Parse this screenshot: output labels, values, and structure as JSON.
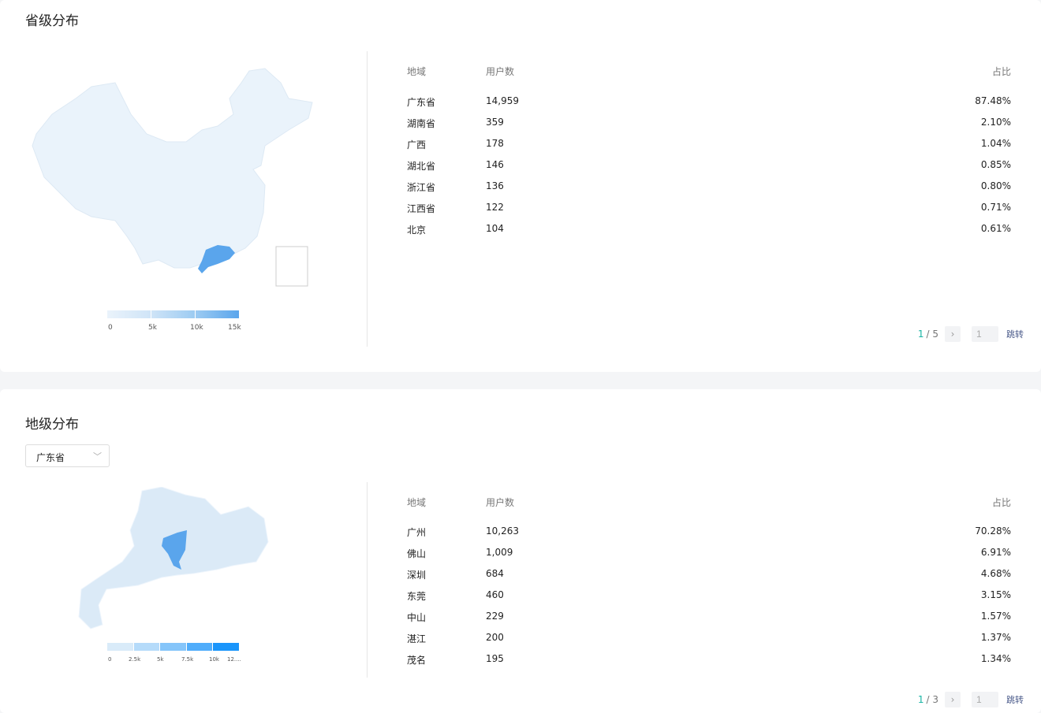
{
  "province": {
    "title": "省级分布",
    "headers": [
      "地域",
      "用户数",
      "占比"
    ],
    "rows": [
      [
        "广东省",
        "14,959",
        "87.48%"
      ],
      [
        "湖南省",
        "359",
        "2.10%"
      ],
      [
        "广西",
        "178",
        "1.04%"
      ],
      [
        "湖北省",
        "146",
        "0.85%"
      ],
      [
        "浙江省",
        "136",
        "0.80%"
      ],
      [
        "江西省",
        "122",
        "0.71%"
      ],
      [
        "北京",
        "104",
        "0.61%"
      ]
    ],
    "legend": [
      "0",
      "5k",
      "10k",
      "15k"
    ],
    "page": {
      "current": "1",
      "total": "/ 5",
      "input": "1",
      "go": "跳转"
    },
    "colors": {
      "base": "#eaf3fb",
      "highlight": "#5aa5ec"
    }
  },
  "city": {
    "title": "地级分布",
    "select": "广东省",
    "headers": [
      "地域",
      "用户数",
      "占比"
    ],
    "rows": [
      [
        "广州",
        "10,263",
        "70.28%"
      ],
      [
        "佛山",
        "1,009",
        "6.91%"
      ],
      [
        "深圳",
        "684",
        "4.68%"
      ],
      [
        "东莞",
        "460",
        "3.15%"
      ],
      [
        "中山",
        "229",
        "1.57%"
      ],
      [
        "湛江",
        "200",
        "1.37%"
      ],
      [
        "茂名",
        "195",
        "1.34%"
      ]
    ],
    "legend": [
      "0",
      "2.5k",
      "5k",
      "7.5k",
      "10k",
      "12...."
    ],
    "page": {
      "current": "1",
      "total": "/ 3",
      "input": "1",
      "go": "跳转"
    },
    "colors": {
      "base": "#dbeaf7",
      "highlight": "#5aa5ec"
    }
  }
}
